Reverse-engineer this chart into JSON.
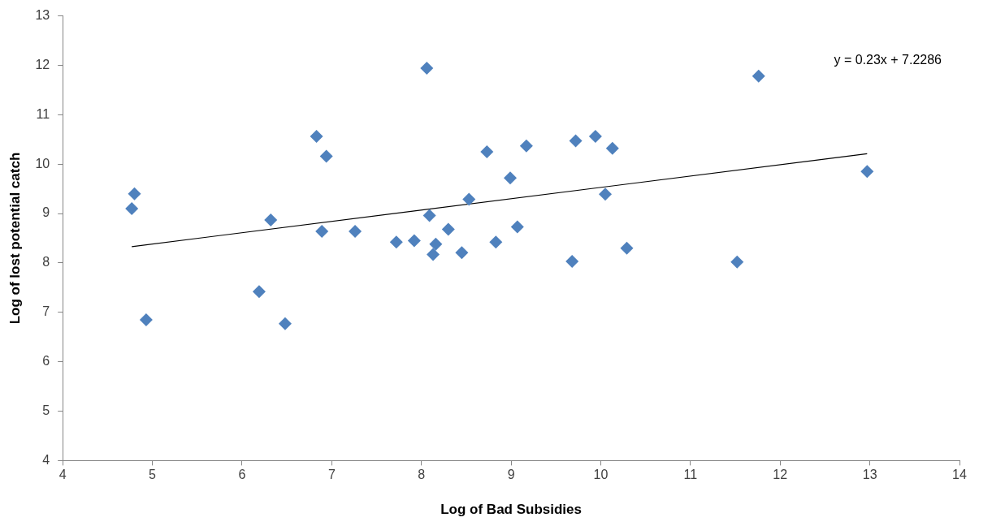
{
  "chart_data": {
    "type": "scatter",
    "xlabel": "Log of Bad Subsidies",
    "ylabel": "Log of lost potential catch",
    "xlim": [
      4,
      14
    ],
    "xticks": [
      4,
      5,
      6,
      7,
      8,
      9,
      10,
      11,
      12,
      13,
      14
    ],
    "ylim": [
      4,
      13
    ],
    "yticks": [
      4,
      5,
      6,
      7,
      8,
      9,
      10,
      11,
      12,
      13
    ],
    "grid": false,
    "legend": false,
    "marker": "diamond",
    "series": [
      {
        "color": "#4f81bd",
        "x": [
          4.77,
          4.8,
          4.93,
          6.19,
          6.32,
          6.48,
          6.83,
          6.94,
          6.89,
          7.26,
          7.72,
          7.92,
          8.06,
          8.09,
          8.13,
          8.16,
          8.3,
          8.45,
          8.53,
          8.73,
          8.83,
          8.99,
          9.07,
          9.17,
          9.68,
          9.72,
          9.94,
          10.05,
          10.13,
          10.29,
          11.52,
          11.76,
          12.97
        ],
        "values": [
          9.1,
          9.4,
          6.85,
          7.42,
          8.87,
          6.77,
          10.56,
          10.16,
          8.64,
          8.64,
          8.42,
          8.45,
          11.94,
          8.96,
          8.17,
          8.38,
          8.68,
          8.21,
          9.29,
          10.25,
          8.42,
          9.72,
          8.73,
          10.37,
          8.03,
          10.47,
          10.56,
          9.39,
          10.32,
          8.3,
          8.02,
          11.78,
          9.85
        ]
      },
      {
        "type": "line",
        "color": "#000000",
        "marker": "none",
        "x": [
          4.77,
          12.97
        ],
        "values": [
          8.33,
          10.21
        ]
      }
    ],
    "annotations": [
      "y = 0.23x + 7.2286"
    ]
  }
}
